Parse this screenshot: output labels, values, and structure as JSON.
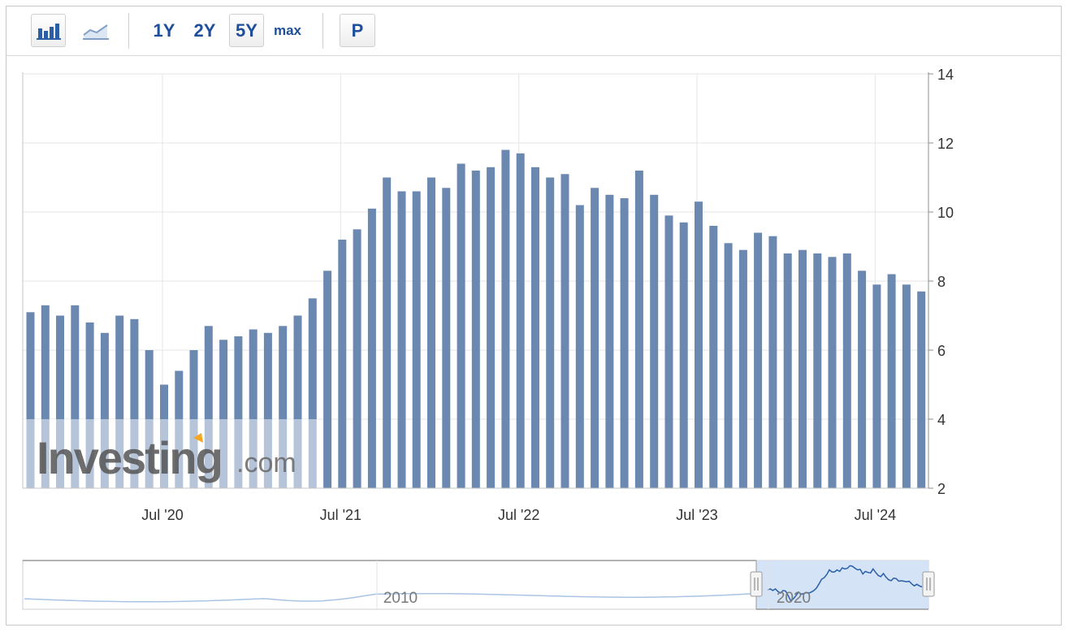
{
  "toolbar": {
    "bar_chart_icon": "bar-chart-icon",
    "line_chart_icon": "line-chart-icon",
    "range_1y": "1Y",
    "range_2y": "2Y",
    "range_5y": "5Y",
    "range_max": "max",
    "p_button": "P",
    "selected_range": "5Y"
  },
  "watermark": {
    "brand": "Investing",
    "suffix": ".com"
  },
  "colors": {
    "bar": "#6b88b0",
    "grid": "#e6e6e6",
    "navigator_line": "#2a5fa8",
    "navigator_fill": "#cfe0f5",
    "navigator_history": "#a9c4e4"
  },
  "chart_data": {
    "type": "bar",
    "title": "",
    "xlabel": "",
    "ylabel": "",
    "ylim": [
      2,
      14
    ],
    "y_ticks": [
      2,
      4,
      6,
      8,
      10,
      12,
      14
    ],
    "y_axis_position": "right",
    "grid": true,
    "x_start": "2019-10",
    "x_ticks": [
      {
        "label": "Jul '20",
        "date": "2020-07"
      },
      {
        "label": "Jul '21",
        "date": "2021-07"
      },
      {
        "label": "Jul '22",
        "date": "2022-07"
      },
      {
        "label": "Jul '23",
        "date": "2023-07"
      },
      {
        "label": "Jul '24",
        "date": "2024-07"
      }
    ],
    "x_end": "2024-10",
    "values": [
      7.1,
      7.3,
      7.0,
      7.3,
      6.8,
      6.5,
      7.0,
      6.9,
      6.0,
      5.0,
      5.4,
      6.0,
      6.7,
      6.3,
      6.4,
      6.6,
      6.5,
      6.7,
      7.0,
      7.5,
      8.3,
      9.2,
      9.5,
      10.1,
      11.0,
      10.6,
      10.6,
      11.0,
      10.7,
      11.4,
      11.2,
      11.3,
      11.8,
      11.7,
      11.3,
      11.0,
      11.1,
      10.2,
      10.7,
      10.5,
      10.4,
      11.2,
      10.5,
      9.9,
      9.7,
      10.3,
      9.6,
      9.1,
      8.9,
      9.4,
      9.3,
      8.8,
      8.9,
      8.8,
      8.7,
      8.8,
      8.3,
      7.9,
      8.2,
      7.9,
      7.7
    ],
    "navigator": {
      "labels": [
        "2010",
        "2020"
      ]
    }
  }
}
